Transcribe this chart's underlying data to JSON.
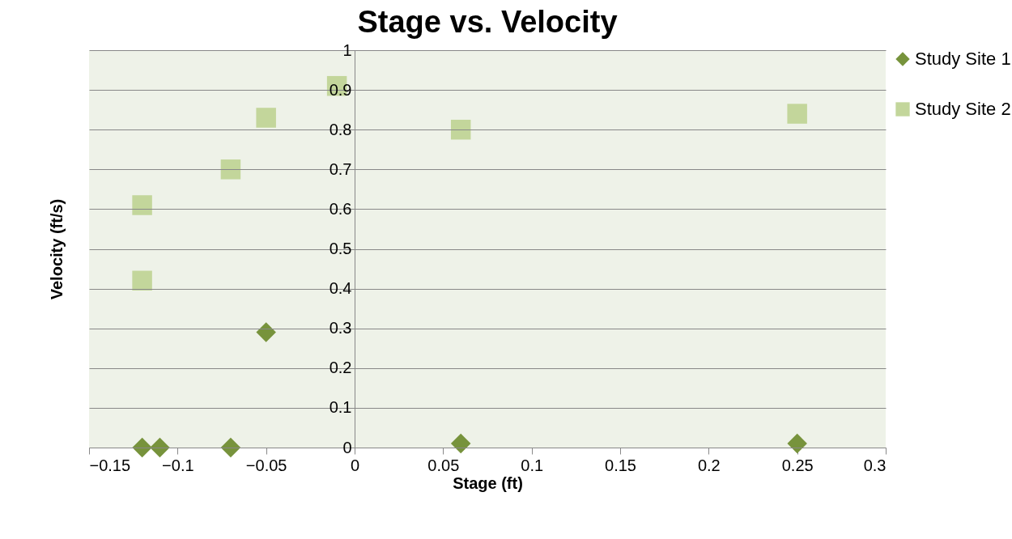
{
  "chart_data": {
    "type": "scatter",
    "title": "Stage vs. Velocity",
    "xlabel": "Stage (ft)",
    "ylabel": "Velocity (ft/s)",
    "xlim": [
      -0.15,
      0.3
    ],
    "xticks": [
      -0.15,
      -0.1,
      -0.05,
      0,
      0.05,
      0.1,
      0.15,
      0.2,
      0.25,
      0.3
    ],
    "ylim": [
      0,
      1
    ],
    "yticks": [
      0,
      0.1,
      0.2,
      0.3,
      0.4,
      0.5,
      0.6,
      0.7,
      0.8,
      0.9,
      1
    ],
    "grid": "y",
    "legend": "right",
    "series": [
      {
        "name": "Study Site 1",
        "color": "#77933c",
        "marker": "diamond",
        "x": [
          -0.12,
          -0.11,
          -0.07,
          -0.05,
          0.06,
          0.25
        ],
        "values": [
          0,
          0,
          0,
          0.29,
          0.01,
          0.01
        ]
      },
      {
        "name": "Study Site 2",
        "color": "#c3d69b",
        "marker": "square",
        "x": [
          -0.12,
          -0.12,
          -0.07,
          -0.05,
          -0.01,
          0.06,
          0.25
        ],
        "values": [
          0.42,
          0.61,
          0.7,
          0.83,
          0.91,
          0.8,
          0.84
        ]
      }
    ]
  }
}
